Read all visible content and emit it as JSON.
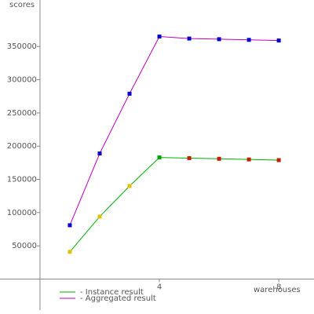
{
  "chart_data": {
    "type": "line",
    "y_label": "scores",
    "x_label": "warehouses",
    "x": [
      1,
      2,
      3,
      4,
      5,
      6,
      7,
      8
    ],
    "series": [
      {
        "name": "- Instance result",
        "color": "#00b000",
        "values": [
          41000,
          94000,
          140000,
          183000,
          182000,
          181000,
          180000,
          179000
        ],
        "marker_colors": [
          "#e0c000",
          "#e0c000",
          "#e0c000",
          "#00a000",
          "#c02000",
          "#c02000",
          "#c02000",
          "#c02000"
        ]
      },
      {
        "name": "- Aggregated result",
        "color": "#c000c0",
        "values": [
          81000,
          189000,
          279000,
          365000,
          362000,
          361000,
          360000,
          359000
        ],
        "marker_colors": [
          "#0000d0",
          "#0000d0",
          "#0000d0",
          "#0000d0",
          "#0000d0",
          "#0000d0",
          "#0000d0",
          "#0000d0"
        ]
      }
    ],
    "xlim": [
      -1.34,
      9.18
    ],
    "ylim": [
      -52600,
      420000
    ],
    "xticks": [
      4,
      8
    ],
    "yticks": [
      50000,
      100000,
      150000,
      200000,
      250000,
      300000,
      350000
    ],
    "axis_color": "#888888"
  }
}
